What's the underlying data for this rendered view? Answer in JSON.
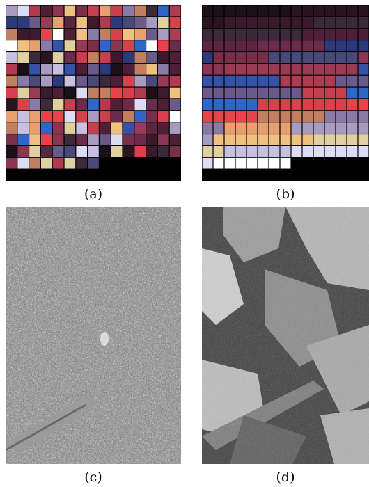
{
  "figure": {
    "panels": [
      {
        "id": "a",
        "caption": "(a)",
        "content": "shuffled-color-palette-grid"
      },
      {
        "id": "b",
        "caption": "(b)",
        "content": "sorted-color-palette-grid"
      },
      {
        "id": "c",
        "caption": "(c)",
        "content": "noisy-grayscale-texture"
      },
      {
        "id": "d",
        "caption": "(d)",
        "content": "quantized-grayscale-photo"
      }
    ],
    "colors": {
      "background": "#ffffff",
      "grid_line": "#000000",
      "palette": [
        "#2a1420",
        "#3b1a2c",
        "#4e1f36",
        "#5c2540",
        "#6a2c4a",
        "#7a2f48",
        "#8a3552",
        "#9b3a55",
        "#b03a4f",
        "#c4404f",
        "#d8414c",
        "#e8424a",
        "#2c3a7c",
        "#3552a8",
        "#2f66c8",
        "#4a4a7a",
        "#6a5a8a",
        "#8a7aa8",
        "#a89bc0",
        "#c8c0e0",
        "#e0d0a0",
        "#f0c080",
        "#e8a070",
        "#c08060",
        "#ffffff",
        "#dcdcf4",
        "#3a2a3a",
        "#1c1018"
      ]
    }
  }
}
